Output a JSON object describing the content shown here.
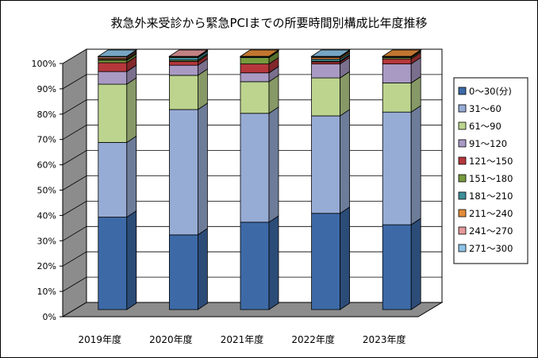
{
  "chart_data": {
    "type": "bar",
    "stacked": true,
    "three_d": true,
    "title": "救急外来受診から緊急PCIまでの所要時間別構成比年度推移",
    "xlabel": "",
    "ylabel": "",
    "ylim": [
      0,
      100
    ],
    "y_ticks": [
      "0%",
      "10%",
      "20%",
      "30%",
      "40%",
      "50%",
      "60%",
      "70%",
      "80%",
      "90%",
      "100%"
    ],
    "categories": [
      "2019年度",
      "2020年度",
      "2021年度",
      "2022年度",
      "2023年度"
    ],
    "legend_position": "right",
    "grid": true,
    "series": [
      {
        "name": "0～30(分)",
        "color": "#3d6aa7",
        "values": [
          36.5,
          29.5,
          34.5,
          38.0,
          33.5
        ]
      },
      {
        "name": "31～60",
        "color": "#97acd5",
        "values": [
          29.5,
          49.5,
          43.0,
          38.5,
          44.5
        ]
      },
      {
        "name": "61～90",
        "color": "#bcd48e",
        "values": [
          23.0,
          13.5,
          12.5,
          15.0,
          11.5
        ]
      },
      {
        "name": "91～120",
        "color": "#a99ac4",
        "values": [
          5.0,
          4.0,
          3.5,
          5.5,
          7.5
        ]
      },
      {
        "name": "121～150",
        "color": "#b5373c",
        "values": [
          3.5,
          1.5,
          3.5,
          0.8,
          2.0
        ]
      },
      {
        "name": "151～180",
        "color": "#779a3f",
        "values": [
          1.0,
          0.5,
          2.5,
          0.3,
          0.5
        ]
      },
      {
        "name": "181～210",
        "color": "#3e8e9a",
        "values": [
          0.3,
          1.0,
          0.3,
          0.8,
          0.3
        ]
      },
      {
        "name": "211～240",
        "color": "#e38b38",
        "values": [
          0.5,
          0.3,
          0.2,
          0.6,
          0.2
        ]
      },
      {
        "name": "241～270",
        "color": "#e5999a",
        "values": [
          0.5,
          0.2,
          0.0,
          0.3,
          0.0
        ]
      },
      {
        "name": "271～300",
        "color": "#8cc3e6",
        "values": [
          0.2,
          0.0,
          0.0,
          0.2,
          0.0
        ]
      }
    ]
  }
}
